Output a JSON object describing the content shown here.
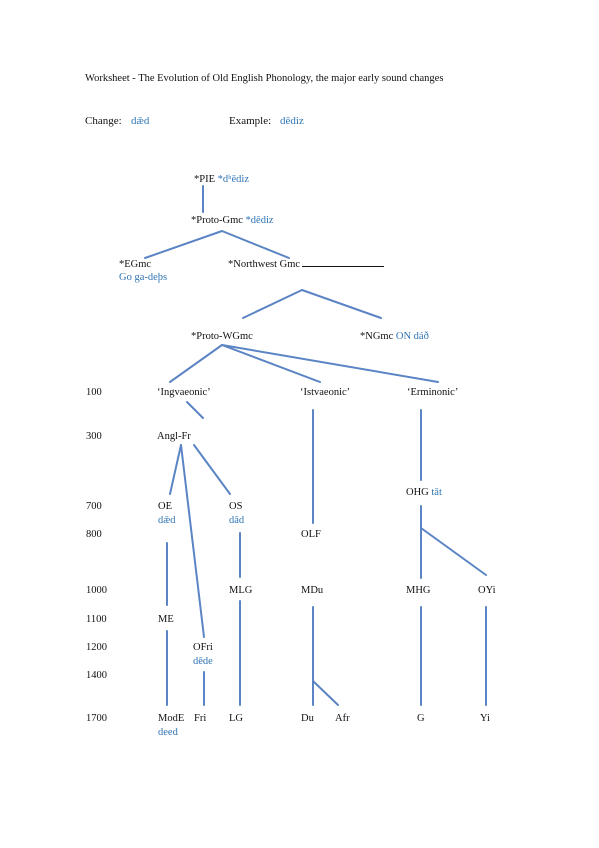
{
  "worksheet": {
    "title": "Worksheet - The Evolution of Old English Phonology, the major early sound changes",
    "change_label": "Change:",
    "change_value": "dǣd",
    "example_label": "Example:",
    "example_value": "dēdiz"
  },
  "tree": {
    "pie": {
      "name": "*PIE",
      "form": "*dʰēdiz"
    },
    "proto_gmc": {
      "name": "*Proto-Gmc",
      "form": "*dēdiz"
    },
    "egmc": {
      "name": "*EGmc",
      "form": "Go ga-deþs"
    },
    "nwgmc": {
      "name": "*Northwest Gmc"
    },
    "proto_wgmc": {
      "name": "*Proto-WGmc"
    },
    "ngmc": {
      "name": "*NGmc",
      "form": "ON dáð"
    },
    "ingvaeonic": {
      "name": "‘Ingvaeonic’"
    },
    "istvaeonic": {
      "name": "‘Istvaeonic’"
    },
    "erminonic": {
      "name": "‘Erminonic’"
    },
    "angl_fr": {
      "name": "Angl-Fr"
    },
    "oe": {
      "name": "OE",
      "form": "dǣd"
    },
    "os": {
      "name": "OS",
      "form": "dād"
    },
    "ohg": {
      "name": "OHG",
      "form": "tāt"
    },
    "olf": {
      "name": "OLF"
    },
    "mlg": {
      "name": "MLG"
    },
    "mdu": {
      "name": "MDu"
    },
    "mhg": {
      "name": "MHG"
    },
    "oyi": {
      "name": "OYi"
    },
    "me": {
      "name": "ME"
    },
    "ofri": {
      "name": "OFri",
      "form": "dēde"
    },
    "mode": {
      "name": "ModE",
      "form": "deed"
    },
    "fri": {
      "name": "Fri"
    },
    "lg": {
      "name": "LG"
    },
    "du": {
      "name": "Du"
    },
    "afr": {
      "name": "Afr"
    },
    "g": {
      "name": "G"
    },
    "yi": {
      "name": "Yi"
    }
  },
  "timeline": [
    "100",
    "300",
    "700",
    "800",
    "1000",
    "1100",
    "1200",
    "1400",
    "1700"
  ]
}
